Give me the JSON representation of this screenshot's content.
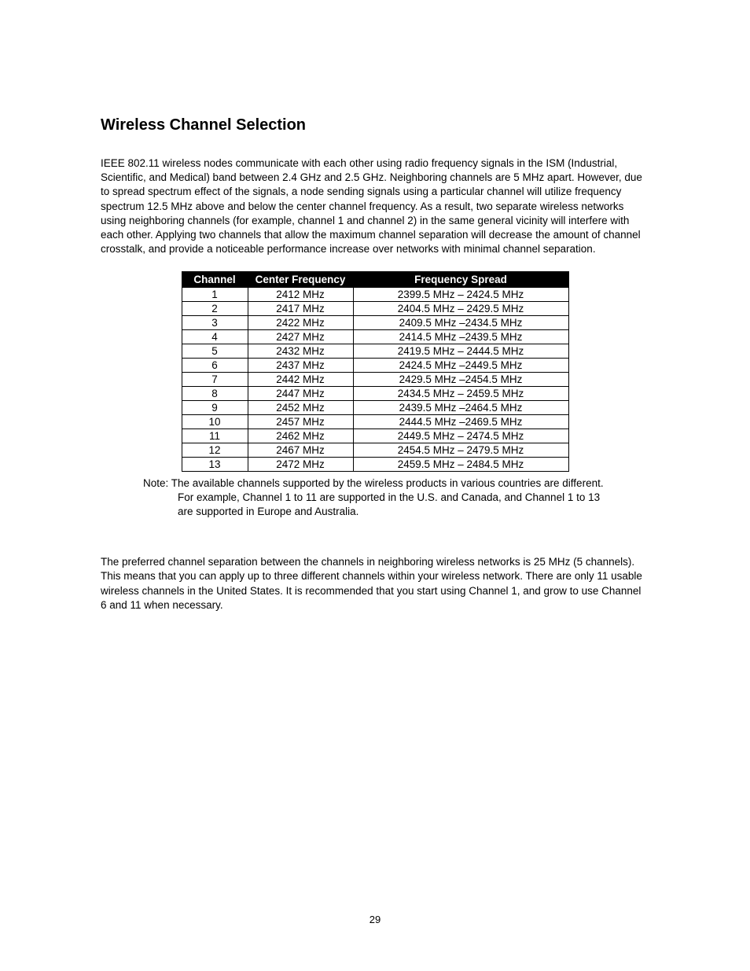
{
  "heading": "Wireless Channel Selection",
  "para1": "IEEE 802.11 wireless nodes communicate with each other using radio frequency signals in the ISM (Industrial, Scientific, and Medical) band between 2.4 GHz and 2.5 GHz. Neighboring channels are 5 MHz apart. However, due to spread spectrum effect of the signals, a node sending signals using a particular channel will utilize frequency spectrum 12.5 MHz above and below the center channel frequency. As a result, two separate wireless networks using neighboring channels (for example, channel 1 and channel 2) in the same general vicinity will interfere with each other. Applying two channels that allow the maximum channel separation will decrease the amount of channel crosstalk, and provide a noticeable performance increase over networks with minimal channel separation.",
  "table": {
    "headers": {
      "channel": "Channel",
      "center": "Center Frequency",
      "spread": "Frequency Spread"
    },
    "rows": [
      {
        "channel": "1",
        "center": "2412 MHz",
        "spread": "2399.5 MHz – 2424.5 MHz"
      },
      {
        "channel": "2",
        "center": "2417 MHz",
        "spread": "2404.5 MHz – 2429.5 MHz"
      },
      {
        "channel": "3",
        "center": "2422 MHz",
        "spread": "2409.5 MHz –2434.5 MHz"
      },
      {
        "channel": "4",
        "center": "2427 MHz",
        "spread": "2414.5 MHz –2439.5 MHz"
      },
      {
        "channel": "5",
        "center": "2432 MHz",
        "spread": "2419.5 MHz – 2444.5 MHz"
      },
      {
        "channel": "6",
        "center": "2437 MHz",
        "spread": "2424.5 MHz –2449.5 MHz"
      },
      {
        "channel": "7",
        "center": "2442 MHz",
        "spread": "2429.5 MHz –2454.5 MHz"
      },
      {
        "channel": "8",
        "center": "2447 MHz",
        "spread": "2434.5 MHz – 2459.5 MHz"
      },
      {
        "channel": "9",
        "center": "2452 MHz",
        "spread": "2439.5 MHz –2464.5 MHz"
      },
      {
        "channel": "10",
        "center": "2457 MHz",
        "spread": "2444.5 MHz –2469.5 MHz"
      },
      {
        "channel": "11",
        "center": "2462 MHz",
        "spread": "2449.5 MHz – 2474.5 MHz"
      },
      {
        "channel": "12",
        "center": "2467 MHz",
        "spread": "2454.5 MHz – 2479.5 MHz"
      },
      {
        "channel": "13",
        "center": "2472 MHz",
        "spread": "2459.5 MHz – 2484.5 MHz"
      }
    ]
  },
  "note": "Note: The available channels supported by the wireless products in various countries are different. For example, Channel 1 to 11 are supported in the U.S. and Canada, and Channel 1 to 13 are supported in Europe and Australia.",
  "para2": "The preferred channel separation between the channels in neighboring wireless networks is 25 MHz (5 channels). This means that you can apply up to three different channels within your wireless network. There are only 11 usable wireless channels in the United States. It is recommended that you start using Channel 1, and grow to use Channel 6 and 11 when necessary.",
  "pageNumber": "29"
}
